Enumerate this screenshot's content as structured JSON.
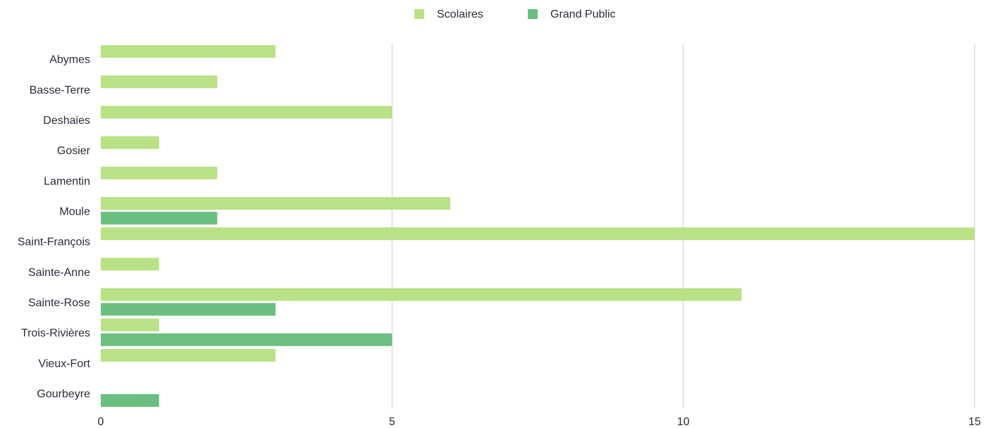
{
  "chart_data": {
    "type": "bar",
    "orientation": "horizontal",
    "categories": [
      "Abymes",
      "Basse-Terre",
      "Deshaies",
      "Gosier",
      "Lamentin",
      "Moule",
      "Saint-François",
      "Sainte-Anne",
      "Sainte-Rose",
      "Trois-Rivières",
      "Vieux-Fort",
      "Gourbeyre"
    ],
    "series": [
      {
        "name": "Scolaires",
        "color": "#b9e185",
        "values": [
          3,
          2,
          5,
          1,
          2,
          6,
          15,
          1,
          11,
          1,
          3,
          0
        ]
      },
      {
        "name": "Grand Public",
        "color": "#6abf81",
        "values": [
          0,
          0,
          0,
          0,
          0,
          2,
          0,
          0,
          3,
          5,
          0,
          1
        ]
      }
    ],
    "xlim": [
      0,
      15
    ],
    "xticks": [
      0,
      5,
      10,
      15
    ],
    "grid": true,
    "legend_position": "top-center"
  }
}
